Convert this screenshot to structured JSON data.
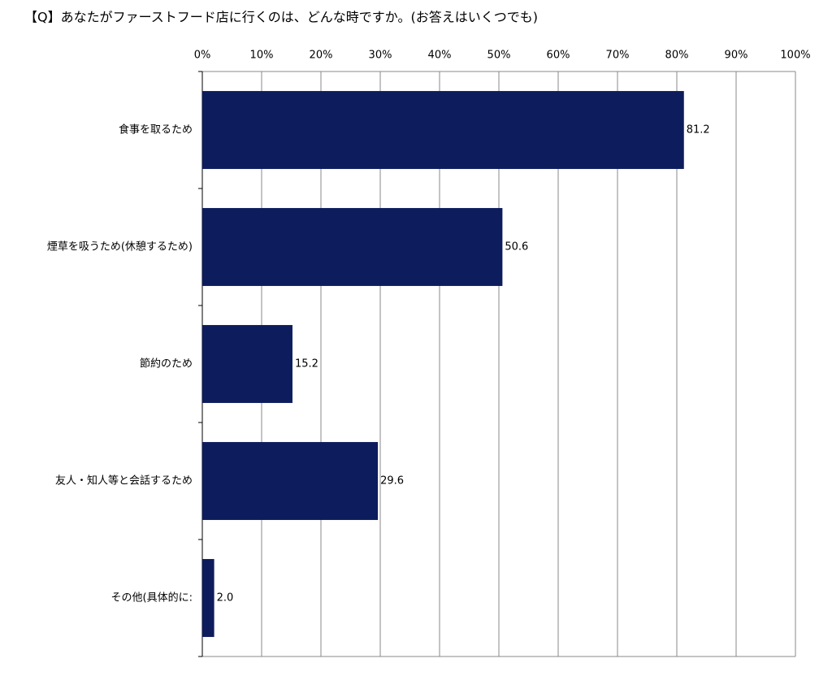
{
  "chart_data": {
    "type": "hbar",
    "title": "【Q】あなたがファーストフード店に行くのは、どんな時ですか。(お答えはいくつでも)",
    "categories": [
      "食事を取るため",
      "煙草を吸うため(休憩するため)",
      "節約のため",
      "友人・知人等と会話するため",
      "その他(具体的に:"
    ],
    "values": [
      81.2,
      50.6,
      15.2,
      29.6,
      2.0
    ],
    "value_labels": [
      "81.2",
      "50.6",
      "15.2",
      "29.6",
      "2.0"
    ],
    "color": "#0c1c5c",
    "xlim": [
      0,
      100
    ],
    "xticks": [
      {
        "value": 0,
        "label": "0%"
      },
      {
        "value": 10,
        "label": "10%"
      },
      {
        "value": 20,
        "label": "20%"
      },
      {
        "value": 30,
        "label": "30%"
      },
      {
        "value": 40,
        "label": "40%"
      },
      {
        "value": 50,
        "label": "50%"
      },
      {
        "value": 60,
        "label": "60%"
      },
      {
        "value": 70,
        "label": "70%"
      },
      {
        "value": 80,
        "label": "80%"
      },
      {
        "value": 90,
        "label": "90%"
      },
      {
        "value": 100,
        "label": "100%"
      }
    ],
    "grid": true
  }
}
